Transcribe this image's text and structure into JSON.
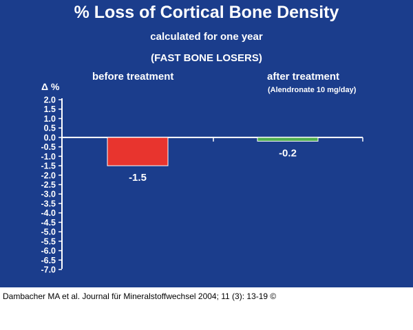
{
  "colors": {
    "background": "#1b3d8c",
    "axis": "#ffffff",
    "text": "#ffffff",
    "before_bar": "#e8342e",
    "after_bar": "#4fae4f"
  },
  "citation": "Dambacher MA et al. Journal für Mineralstoffwechsel 2004; 11 (3): 13-19 ©",
  "chart_data": {
    "type": "bar",
    "title": "% Loss of Cortical Bone Density",
    "subtitle": "calculated for one year",
    "subtitle2": "(FAST BONE LOSERS)",
    "ylabel": "Δ %",
    "ylim": [
      -7.0,
      2.0
    ],
    "ytick_step": 0.5,
    "yticks": [
      "2.0",
      "1.5",
      "1.0",
      "0.5",
      "0.0",
      "-0.5",
      "-1.0",
      "-1.5",
      "-2.0",
      "-2.5",
      "-3.0",
      "-3.5",
      "-4.0",
      "-4.5",
      "-5.0",
      "-5.5",
      "-6.0",
      "-6.5",
      "-7.0"
    ],
    "grid": false,
    "categories": [
      "before treatment",
      "after treatment"
    ],
    "category_notes": [
      "",
      "(Alendronate 10 mg/day)"
    ],
    "values": [
      -1.5,
      -0.2
    ],
    "value_labels": [
      "-1.5",
      "-0.2"
    ]
  }
}
